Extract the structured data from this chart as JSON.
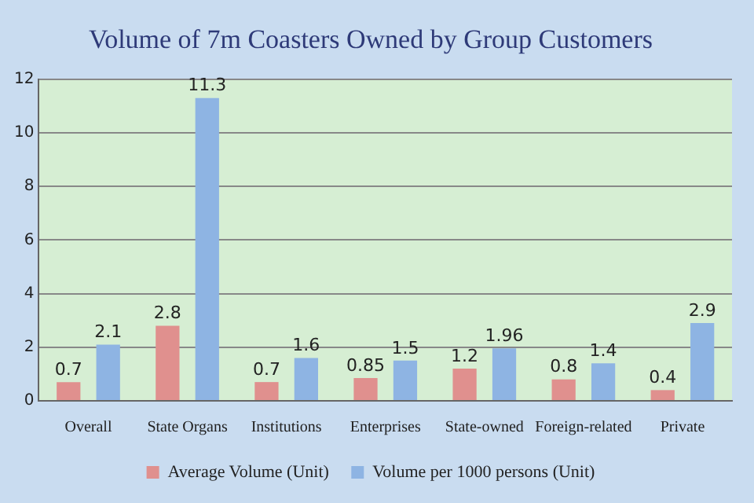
{
  "chart_data": {
    "type": "bar",
    "title": "Volume of 7m Coasters Owned by Group Customers",
    "categories": [
      "Overall",
      "State Organs",
      "Institutions",
      "Enterprises",
      "State-owned",
      "Foreign-related",
      "Private"
    ],
    "series": [
      {
        "name": "Average Volume (Unit)",
        "color": "#e0908e",
        "values": [
          0.7,
          2.8,
          0.7,
          0.85,
          1.2,
          0.8,
          0.4
        ]
      },
      {
        "name": "Volume per 1000 persons (Unit)",
        "color": "#8eb4e3",
        "values": [
          2.1,
          11.3,
          1.6,
          1.5,
          1.96,
          1.4,
          2.9
        ]
      }
    ],
    "ylim": [
      0,
      12
    ],
    "yticks": [
      0,
      2,
      4,
      6,
      8,
      10,
      12
    ],
    "grid": "y",
    "legend": "bottom",
    "data_labels": true
  }
}
